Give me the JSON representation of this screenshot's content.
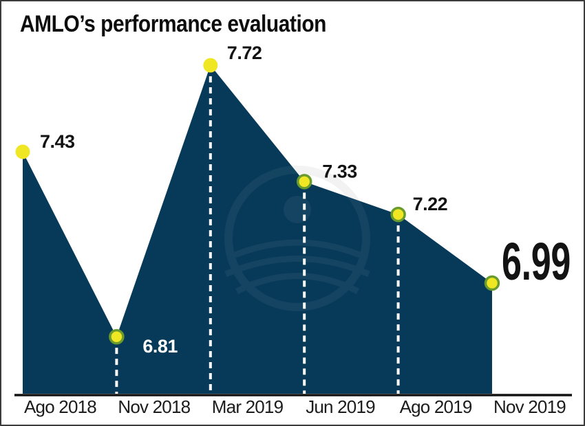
{
  "title": "AMLO’s performance evaluation",
  "chart_data": {
    "type": "area",
    "title": "AMLO’s performance evaluation",
    "categories": [
      "Ago 2018",
      "Nov 2018",
      "Mar 2019",
      "Jun 2019",
      "Ago 2019",
      "Nov 2019"
    ],
    "values": [
      7.43,
      6.81,
      7.72,
      7.33,
      7.22,
      6.99
    ],
    "point_labels": [
      "7.43",
      "6.81",
      "7.72",
      "7.33",
      "7.22",
      "6.99"
    ],
    "highlighted_point": "Nov 2019",
    "highlighted_label": "6.99",
    "xlabel": "",
    "ylabel": "",
    "ylim": [
      6.62,
      7.9
    ],
    "grid": false,
    "legend": "none",
    "notes": "single-series area chart; dashed white guide lines drop from the Nov 2018, Mar 2019, Jun 2019 and Ago 2019 points to the baseline; faint circular watermark emblem in chart center"
  },
  "colors": {
    "background": "#ffffff",
    "area_fill": "#073a58",
    "dot_fill": "#f0e724",
    "dot_ring": "#699b2e",
    "guide_dash": "#ffffff",
    "axis_line": "#131313",
    "label_dark": "#131313",
    "label_light": "#ffffff",
    "frame_border": "#3c3c3c"
  }
}
